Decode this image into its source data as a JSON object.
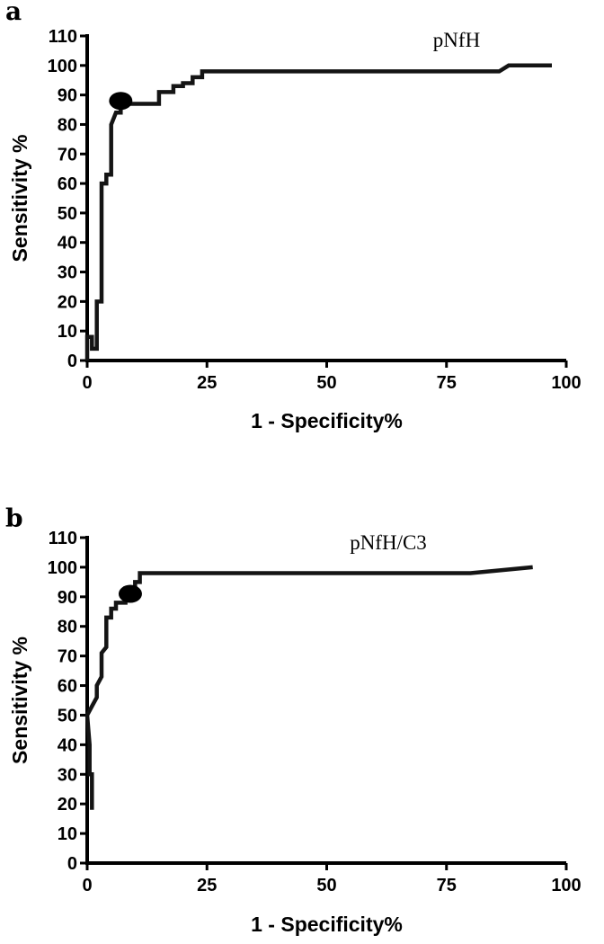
{
  "chart_data": [
    {
      "panel": "a",
      "type": "line",
      "series_label": "pNfH",
      "xlabel": "1 - Specificity%",
      "ylabel": "Sensitivity %",
      "xlim": [
        0,
        100
      ],
      "ylim": [
        0,
        110
      ],
      "xticks": [
        0,
        25,
        50,
        75,
        100
      ],
      "yticks": [
        0,
        10,
        20,
        30,
        40,
        50,
        60,
        70,
        80,
        90,
        100,
        110
      ],
      "grid": false,
      "x": [
        0,
        0,
        1,
        1,
        2,
        2,
        3,
        3,
        4,
        4,
        5,
        5,
        6,
        7,
        7,
        15,
        15,
        18,
        18,
        20,
        20,
        22,
        22,
        24,
        24,
        86,
        88,
        97
      ],
      "y": [
        0,
        8,
        8,
        4,
        4,
        20,
        20,
        60,
        60,
        63,
        63,
        80,
        84,
        84,
        87,
        87,
        91,
        91,
        93,
        93,
        94,
        94,
        96,
        96,
        98,
        98,
        100,
        100
      ],
      "marker": {
        "x": 7,
        "y": 88
      }
    },
    {
      "panel": "b",
      "type": "line",
      "series_label": "pNfH/C3",
      "xlabel": "1 - Specificity%",
      "ylabel": "Sensitivity %",
      "xlim": [
        0,
        100
      ],
      "ylim": [
        0,
        110
      ],
      "xticks": [
        0,
        25,
        50,
        75,
        100
      ],
      "yticks": [
        0,
        10,
        20,
        30,
        40,
        50,
        60,
        70,
        80,
        90,
        100,
        110
      ],
      "grid": false,
      "x": [
        1,
        1,
        0.5,
        0.5,
        0,
        1,
        2,
        2,
        3,
        3,
        4,
        4,
        5,
        5,
        6,
        6,
        8,
        8,
        10,
        10,
        11,
        11,
        80,
        93
      ],
      "y": [
        18,
        30,
        30,
        40,
        50,
        53,
        56,
        60,
        63,
        71,
        73,
        83,
        83,
        86,
        86,
        88,
        88,
        90,
        90,
        95,
        95,
        98,
        98,
        100
      ],
      "marker": {
        "x": 9,
        "y": 91
      }
    }
  ]
}
